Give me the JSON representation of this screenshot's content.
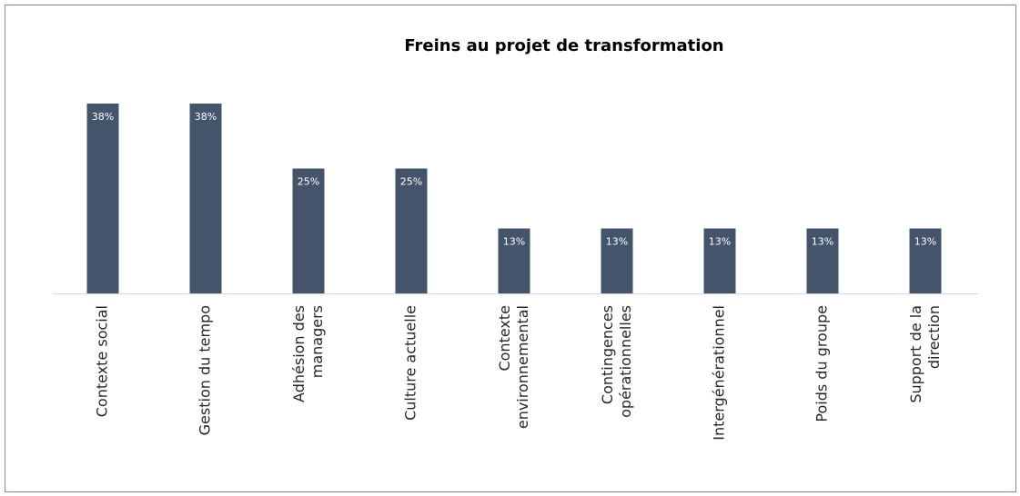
{
  "chart_data": {
    "type": "bar",
    "title": "Freins au projet de transformation",
    "categories": [
      "Contexte social",
      "Gestion du tempo",
      "Adhésion des\nmanagers",
      "Culture actuelle",
      "Contexte\nenvironnemental",
      "Contingences\nopérationnelles",
      "Intergénérationnel",
      "Poids du groupe",
      "Support de la\ndirection"
    ],
    "values": [
      38,
      38,
      25,
      25,
      13,
      13,
      13,
      13,
      13
    ],
    "value_labels": [
      "38%",
      "38%",
      "25%",
      "25%",
      "13%",
      "13%",
      "13%",
      "13%",
      "13%"
    ],
    "color": "#44546a"
  }
}
